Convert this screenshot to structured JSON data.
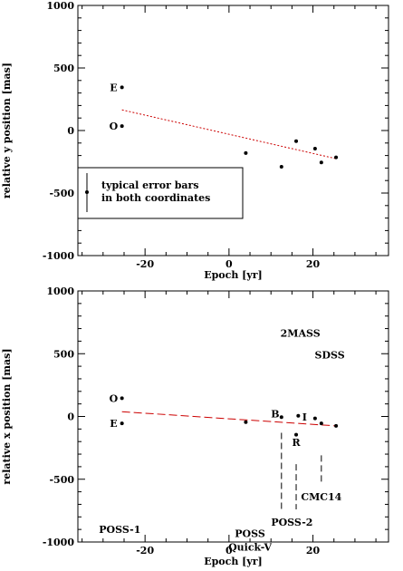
{
  "chart_data": [
    {
      "type": "scatter",
      "xlabel": "Epoch [yr]",
      "ylabel": "relative y position [mas]",
      "xlim": [
        -36,
        38
      ],
      "ylim": [
        -1000,
        1000
      ],
      "xticks": [
        -20,
        0,
        20
      ],
      "xtick_labels": [
        "-20",
        "0",
        "20"
      ],
      "yticks": [
        -1000,
        -500,
        0,
        500,
        1000
      ],
      "ytick_labels": [
        "-1000",
        "-500",
        "0",
        "500",
        "1000"
      ],
      "grid": false,
      "series": [
        {
          "marker": "dot",
          "points": [
            {
              "x": -25.5,
              "y": 345
            },
            {
              "x": -25.5,
              "y": 35
            },
            {
              "x": 4,
              "y": -180
            },
            {
              "x": 12.5,
              "y": -290
            },
            {
              "x": 16,
              "y": -85
            },
            {
              "x": 20.5,
              "y": -145
            },
            {
              "x": 22,
              "y": -255
            },
            {
              "x": 25.5,
              "y": -215
            }
          ]
        }
      ],
      "fit_line": {
        "style": "dotted",
        "color": "#cc0000",
        "x": [
          -25.5,
          25.5
        ],
        "y": [
          165,
          -225
        ]
      },
      "annotations": [
        {
          "text": "E",
          "x": -27.5,
          "y": 345
        },
        {
          "text": "O",
          "x": -27.5,
          "y": 35
        }
      ],
      "legend": {
        "line1": "typical error bars",
        "line2": "in both coordinates"
      }
    },
    {
      "type": "scatter",
      "xlabel": "Epoch [yr]",
      "ylabel": "relative x position [mas]",
      "xlim": [
        -36,
        38
      ],
      "ylim": [
        -1000,
        1000
      ],
      "xticks": [
        -20,
        0,
        20
      ],
      "xtick_labels": [
        "-20",
        "0",
        "20"
      ],
      "yticks": [
        -1000,
        -500,
        0,
        500,
        1000
      ],
      "ytick_labels": [
        "-1000",
        "-500",
        "0",
        "500",
        "1000"
      ],
      "grid": false,
      "series": [
        {
          "marker": "dot",
          "points": [
            {
              "x": -25.5,
              "y": 145
            },
            {
              "x": -25.5,
              "y": -55
            },
            {
              "x": 4,
              "y": -45
            },
            {
              "x": 12.5,
              "y": -5
            },
            {
              "x": 16,
              "y": -145
            },
            {
              "x": 16.5,
              "y": 5
            },
            {
              "x": 20.5,
              "y": -15
            },
            {
              "x": 22,
              "y": -55
            },
            {
              "x": 25.5,
              "y": -75
            }
          ]
        }
      ],
      "fit_line": {
        "style": "dashed",
        "color": "#cc0000",
        "x": [
          -25.5,
          25.5
        ],
        "y": [
          38,
          -75
        ]
      },
      "annotations": [
        {
          "text": "O",
          "x": -27.5,
          "y": 145
        },
        {
          "text": "E",
          "x": -27.5,
          "y": -55
        },
        {
          "text": "B",
          "x": 11,
          "y": 20
        },
        {
          "text": "I",
          "x": 18,
          "y": -5
        },
        {
          "text": "R",
          "x": 16,
          "y": -205
        },
        {
          "text": "2MASS",
          "x": 17,
          "y": 665
        },
        {
          "text": "SDSS",
          "x": 24,
          "y": 490
        },
        {
          "text": "CMC14",
          "x": 22,
          "y": -640
        },
        {
          "text": "POSS-2",
          "x": 15,
          "y": -840
        },
        {
          "text": "POSS",
          "x": 5,
          "y": -930
        },
        {
          "text": "Quick-V",
          "x": 5,
          "y": -1040
        },
        {
          "text": "POSS-1",
          "x": -26,
          "y": -900
        }
      ],
      "guide_lines": [
        {
          "x": 12.5,
          "y_from": -130,
          "y_to": -740
        },
        {
          "x": 16,
          "y_from": -380,
          "y_to": -740
        },
        {
          "x": 22,
          "y_from": -310,
          "y_to": -530
        }
      ]
    }
  ]
}
